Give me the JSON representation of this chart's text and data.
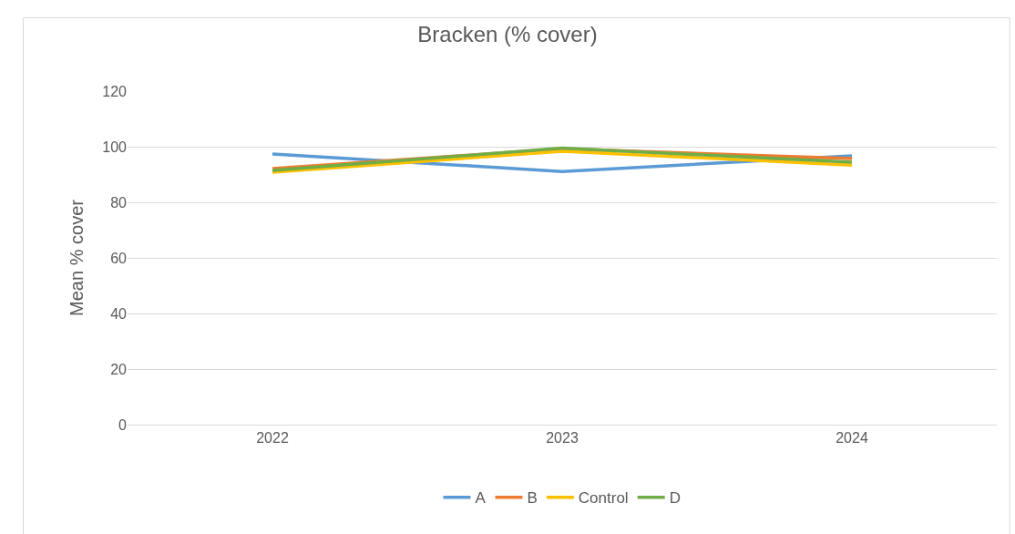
{
  "chart_data": {
    "type": "line",
    "title": "Bracken (% cover)",
    "ylabel": "Mean % cover",
    "categories": [
      "2022",
      "2023",
      "2024"
    ],
    "series": [
      {
        "name": "A",
        "color": "#5b9bd5",
        "values": [
          97.4,
          91.1,
          96.7
        ]
      },
      {
        "name": "B",
        "color": "#ed7d31",
        "values": [
          92.1,
          99.3,
          95.7
        ]
      },
      {
        "name": "Control",
        "color": "#ffc000",
        "values": [
          90.8,
          98.4,
          93.4
        ]
      },
      {
        "name": "D",
        "color": "#70ad47",
        "values": [
          91.5,
          99.5,
          94.4
        ]
      }
    ],
    "ylim": [
      0,
      120
    ],
    "yticks": [
      0,
      20,
      40,
      60,
      80,
      100,
      120
    ],
    "grid": "y",
    "legend": "bottom",
    "marker": "none",
    "line_style": "solid"
  }
}
